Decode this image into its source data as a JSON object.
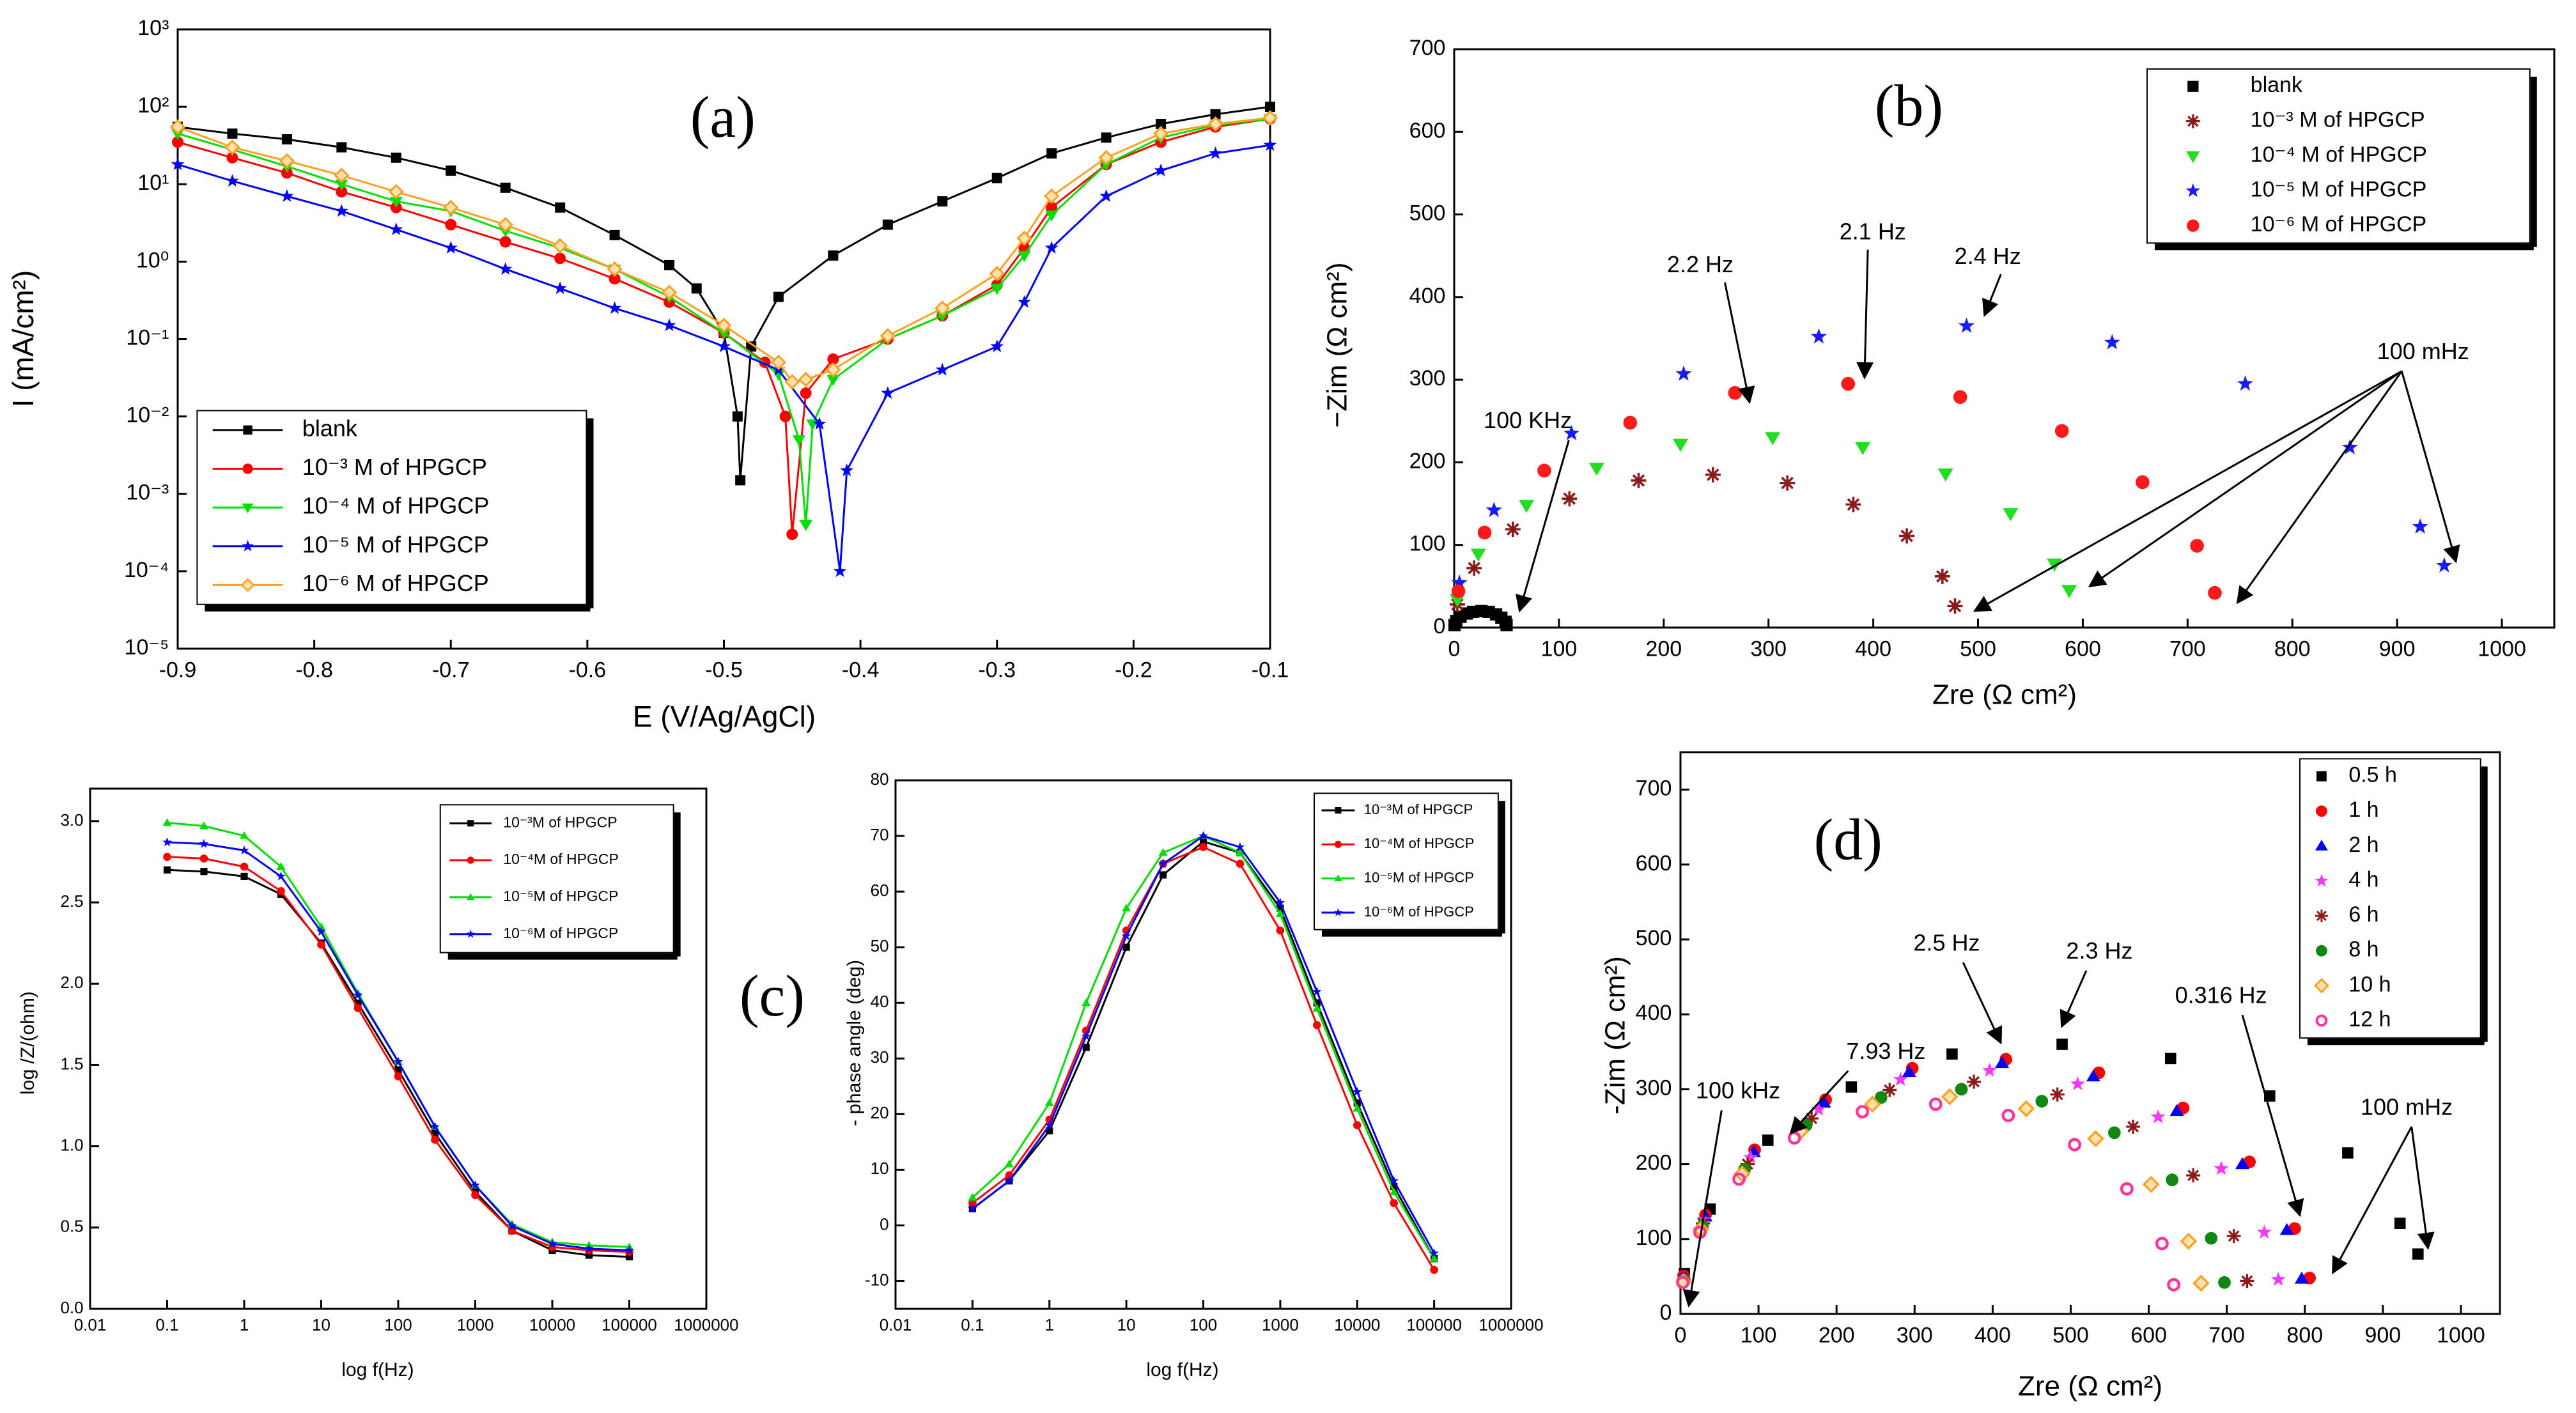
{
  "chart_data": [
    {
      "type": "line",
      "panel_label": "(a)",
      "xlabel": "E (V/Ag/AgCl)",
      "ylabel": "I (mA/cm²)",
      "yscale": "log",
      "legend": "lower left",
      "xlim": [
        -0.9,
        -0.1
      ],
      "xticks": [
        -0.9,
        -0.8,
        -0.7,
        -0.6,
        -0.5,
        -0.4,
        -0.3,
        -0.2,
        -0.1
      ],
      "ylim": [
        1e-05,
        1000
      ],
      "yticks": [
        {
          "value": 1e-05,
          "label": "10⁻⁵"
        },
        {
          "value": 0.0001,
          "label": "10⁻⁴"
        },
        {
          "value": 0.001,
          "label": "10⁻³"
        },
        {
          "value": 0.01,
          "label": "10⁻²"
        },
        {
          "value": 0.1,
          "label": "10⁻¹"
        },
        {
          "value": 1,
          "label": "10⁰"
        },
        {
          "value": 10,
          "label": "10¹"
        },
        {
          "value": 100,
          "label": "10²"
        },
        {
          "value": 1000,
          "label": "10³"
        }
      ],
      "series": [
        {
          "name": "blank",
          "color": "#000000",
          "marker": "square",
          "x": [
            -0.9,
            -0.86,
            -0.82,
            -0.78,
            -0.74,
            -0.7,
            -0.66,
            -0.62,
            -0.58,
            -0.54,
            -0.52,
            -0.5,
            -0.49,
            -0.488,
            -0.48,
            -0.46,
            -0.42,
            -0.38,
            -0.34,
            -0.3,
            -0.26,
            -0.22,
            -0.18,
            -0.14,
            -0.1
          ],
          "values": [
            55,
            45,
            38,
            30,
            22,
            15,
            9,
            5,
            2.2,
            0.9,
            0.45,
            0.12,
            0.01,
            0.0015,
            0.08,
            0.35,
            1.2,
            3,
            6,
            12,
            25,
            40,
            60,
            80,
            100
          ]
        },
        {
          "name": "10⁻³ M of HPGCP",
          "color": "#ff0000",
          "marker": "circle",
          "x": [
            -0.9,
            -0.86,
            -0.82,
            -0.78,
            -0.74,
            -0.7,
            -0.66,
            -0.62,
            -0.58,
            -0.54,
            -0.5,
            -0.47,
            -0.455,
            -0.45,
            -0.44,
            -0.42,
            -0.38,
            -0.34,
            -0.3,
            -0.28,
            -0.26,
            -0.22,
            -0.18,
            -0.14,
            -0.1
          ],
          "values": [
            35,
            22,
            14,
            8,
            5,
            3,
            1.8,
            1.1,
            0.6,
            0.3,
            0.12,
            0.05,
            0.01,
            0.0003,
            0.02,
            0.055,
            0.1,
            0.2,
            0.5,
            1.5,
            5,
            18,
            35,
            55,
            70
          ]
        },
        {
          "name": "10⁻⁴ M of HPGCP",
          "color": "#00e000",
          "marker": "tri-down",
          "x": [
            -0.9,
            -0.86,
            -0.82,
            -0.78,
            -0.74,
            -0.7,
            -0.66,
            -0.62,
            -0.58,
            -0.54,
            -0.5,
            -0.46,
            -0.445,
            -0.44,
            -0.435,
            -0.42,
            -0.38,
            -0.34,
            -0.3,
            -0.28,
            -0.26,
            -0.22,
            -0.18,
            -0.14,
            -0.1
          ],
          "values": [
            45,
            28,
            17,
            10,
            6,
            4.5,
            2.5,
            1.5,
            0.8,
            0.35,
            0.12,
            0.035,
            0.005,
            0.0004,
            0.008,
            0.03,
            0.1,
            0.2,
            0.45,
            1.2,
            4,
            18,
            40,
            58,
            70
          ]
        },
        {
          "name": "10⁻⁵ M of HPGCP",
          "color": "#0000ff",
          "marker": "star",
          "x": [
            -0.9,
            -0.86,
            -0.82,
            -0.78,
            -0.74,
            -0.7,
            -0.66,
            -0.62,
            -0.58,
            -0.54,
            -0.5,
            -0.46,
            -0.43,
            -0.415,
            -0.41,
            -0.38,
            -0.34,
            -0.3,
            -0.28,
            -0.26,
            -0.22,
            -0.18,
            -0.14,
            -0.1
          ],
          "values": [
            18,
            11,
            7,
            4.5,
            2.6,
            1.5,
            0.8,
            0.45,
            0.25,
            0.15,
            0.08,
            0.04,
            0.008,
            0.0001,
            0.002,
            0.02,
            0.04,
            0.08,
            0.3,
            1.5,
            7,
            15,
            25,
            32
          ]
        },
        {
          "name": "10⁻⁶ M of HPGCP",
          "color": "#ffa020",
          "marker": "diamond",
          "x": [
            -0.9,
            -0.86,
            -0.82,
            -0.78,
            -0.74,
            -0.7,
            -0.66,
            -0.62,
            -0.58,
            -0.54,
            -0.5,
            -0.46,
            -0.45,
            -0.44,
            -0.42,
            -0.38,
            -0.34,
            -0.3,
            -0.28,
            -0.26,
            -0.22,
            -0.18,
            -0.14,
            -0.1
          ],
          "values": [
            55,
            30,
            20,
            13,
            8,
            5,
            3,
            1.6,
            0.8,
            0.4,
            0.15,
            0.05,
            0.028,
            0.03,
            0.04,
            0.11,
            0.25,
            0.7,
            2,
            7,
            22,
            45,
            60,
            72
          ]
        }
      ]
    },
    {
      "type": "scatter",
      "panel_label": "(b)",
      "xlabel": "Zre (Ω cm²)",
      "ylabel": "−Zim (Ω cm²)",
      "legend": "upper right",
      "annotations": [
        "100 KHz",
        "2.2 Hz",
        "2.1 Hz",
        "2.4 Hz",
        "100 mHz"
      ],
      "xlim": [
        0,
        1050
      ],
      "xticks": [
        0,
        100,
        200,
        300,
        400,
        500,
        600,
        700,
        800,
        900,
        1000
      ],
      "ylim": [
        0,
        700
      ],
      "yticks": [
        0,
        100,
        200,
        300,
        400,
        500,
        600,
        700
      ],
      "series": [
        {
          "name": "blank",
          "color": "#000000",
          "marker": "square",
          "x": [
            0.3,
            2,
            6,
            12,
            18,
            26,
            33,
            40,
            45,
            49,
            50
          ],
          "values": [
            3,
            8,
            13,
            17,
            19,
            20,
            19,
            16,
            12,
            7,
            3
          ]
        },
        {
          "name": "10⁻³ M of HPGCP",
          "color": "#8b1a1a",
          "marker": "asterisk",
          "x": [
            3,
            19,
            56,
            110,
            176,
            247,
            318,
            381,
            432,
            466,
            478
          ],
          "values": [
            28,
            72,
            119,
            156,
            178,
            185,
            175,
            149,
            111,
            62,
            26
          ]
        },
        {
          "name": "10⁻⁴ M of HPGCP",
          "color": "#22dd22",
          "marker": "tri-down",
          "x": [
            3,
            23,
            69,
            136,
            216,
            304,
            390,
            469,
            531,
            573,
            587
          ],
          "values": [
            34,
            89,
            148,
            193,
            222,
            230,
            218,
            186,
            138,
            77,
            45
          ]
        },
        {
          "name": "10⁻⁵ M of HPGCP",
          "color": "#1a1aff",
          "marker": "star",
          "x": [
            5,
            38,
            112,
            219,
            348,
            489,
            628,
            755,
            855,
            922,
            945
          ],
          "values": [
            54,
            142,
            235,
            307,
            352,
            365,
            345,
            295,
            218,
            122,
            75
          ]
        },
        {
          "name": "10⁻⁶ M of HPGCP",
          "color": "#ff1a1a",
          "marker": "circle",
          "x": [
            4,
            29,
            86,
            168,
            268,
            376,
            483,
            580,
            657,
            709,
            726
          ],
          "values": [
            44,
            115,
            190,
            248,
            284,
            295,
            279,
            238,
            176,
            99,
            42
          ]
        }
      ]
    },
    {
      "type": "line",
      "panel_label": "(c)",
      "xlabel": "log f(Hz)",
      "ylabel": "log /Z/(ohm)",
      "xscale": "log",
      "legend": "upper right",
      "xlim": [
        0.01,
        1000000
      ],
      "xticks": [
        0.01,
        0.1,
        1,
        10,
        100,
        1000,
        10000,
        100000,
        1000000
      ],
      "ylim": [
        0,
        3.2
      ],
      "yticks": [
        {
          "value": 0,
          "label": "0.0"
        },
        0.5,
        {
          "value": 1,
          "label": "1.0"
        },
        1.5,
        {
          "value": 2,
          "label": "2.0"
        },
        2.5,
        {
          "value": 3,
          "label": "3.0"
        }
      ],
      "x": [
        0.1,
        0.3,
        1,
        3,
        10,
        30,
        100,
        300,
        1000,
        3000,
        10000,
        30000,
        100000
      ],
      "series": [
        {
          "name": "10⁻³M of HPGCP",
          "color": "#000000",
          "marker": "square",
          "values": [
            2.7,
            2.69,
            2.66,
            2.55,
            2.25,
            1.88,
            1.47,
            1.08,
            0.72,
            0.48,
            0.36,
            0.33,
            0.32
          ]
        },
        {
          "name": "10⁻⁴M of HPGCP",
          "color": "#ff0000",
          "marker": "circle",
          "values": [
            2.78,
            2.77,
            2.72,
            2.57,
            2.24,
            1.85,
            1.43,
            1.04,
            0.7,
            0.48,
            0.38,
            0.36,
            0.35
          ]
        },
        {
          "name": "10⁻⁵M of HPGCP",
          "color": "#00dd00",
          "marker": "tri-up",
          "values": [
            2.99,
            2.97,
            2.91,
            2.72,
            2.35,
            1.94,
            1.52,
            1.12,
            0.76,
            0.52,
            0.41,
            0.39,
            0.38
          ]
        },
        {
          "name": "10⁻⁶M of HPGCP",
          "color": "#0000ff",
          "marker": "star",
          "values": [
            2.87,
            2.86,
            2.82,
            2.66,
            2.32,
            1.93,
            1.52,
            1.12,
            0.76,
            0.51,
            0.4,
            0.37,
            0.36
          ]
        }
      ]
    },
    {
      "type": "line",
      "xlabel": "log f(Hz)",
      "ylabel": "- phase angle (deg)",
      "xscale": "log",
      "legend": "upper right",
      "xlim": [
        0.01,
        1000000
      ],
      "xticks": [
        0.01,
        0.1,
        1,
        10,
        100,
        1000,
        10000,
        100000,
        1000000
      ],
      "ylim": [
        -15,
        80
      ],
      "yticks": [
        -10,
        0,
        10,
        20,
        30,
        40,
        50,
        60,
        70,
        80
      ],
      "x": [
        0.1,
        0.3,
        1,
        3,
        10,
        30,
        100,
        300,
        1000,
        3000,
        10000,
        30000,
        100000
      ],
      "series": [
        {
          "name": "10⁻³M of HPGCP",
          "color": "#000000",
          "marker": "square",
          "values": [
            3,
            8,
            17,
            32,
            50,
            63,
            69,
            67,
            57,
            40,
            22,
            7,
            -6
          ]
        },
        {
          "name": "10⁻⁴M of HPGCP",
          "color": "#ff0000",
          "marker": "circle",
          "values": [
            4,
            9,
            19,
            35,
            53,
            65,
            68,
            65,
            53,
            36,
            18,
            4,
            -8
          ]
        },
        {
          "name": "10⁻⁵M of HPGCP",
          "color": "#00dd00",
          "marker": "tri-up",
          "values": [
            5,
            11,
            22,
            40,
            57,
            67,
            70,
            67,
            56,
            39,
            21,
            6,
            -6
          ]
        },
        {
          "name": "10⁻⁶M of HPGCP",
          "color": "#0000ff",
          "marker": "star",
          "values": [
            3,
            8,
            18,
            34,
            52,
            65,
            70,
            68,
            58,
            42,
            24,
            8,
            -5
          ]
        }
      ]
    },
    {
      "type": "scatter",
      "panel_label": "(d)",
      "xlabel": "Zre (Ω cm²)",
      "ylabel": "-Zim (Ω cm²)",
      "legend": "upper right",
      "annotations": [
        "100 kHz",
        "7.93 Hz",
        "2.5 Hz",
        "2.3 Hz",
        "0.316 Hz",
        "100 mHz"
      ],
      "xlim": [
        0,
        1050
      ],
      "xticks": [
        0,
        100,
        200,
        300,
        400,
        500,
        600,
        700,
        800,
        900,
        1000
      ],
      "ylim": [
        0,
        750
      ],
      "yticks": [
        0,
        100,
        200,
        300,
        400,
        500,
        600,
        700
      ],
      "series": [
        {
          "name": "0.5 h",
          "color": "#000000",
          "marker": "square",
          "x": [
            5,
            38,
            112,
            219,
            348,
            489,
            628,
            755,
            855,
            922,
            945
          ],
          "values": [
            54,
            140,
            232,
            303,
            347,
            360,
            341,
            291,
            215,
            121,
            80
          ]
        },
        {
          "name": "1 h",
          "color": "#ff0000",
          "marker": "circle",
          "x": [
            4,
            32,
            95,
            186,
            297,
            417,
            536,
            644,
            729,
            787,
            806
          ],
          "values": [
            51,
            132,
            219,
            286,
            328,
            340,
            322,
            275,
            203,
            114,
            48
          ]
        },
        {
          "name": "2 h",
          "color": "#0000ff",
          "marker": "tri-up",
          "x": [
            4,
            32,
            94,
            184,
            293,
            412,
            529,
            636,
            720,
            777,
            796
          ],
          "values": [
            50,
            130,
            216,
            282,
            323,
            335,
            317,
            271,
            200,
            112,
            47
          ]
        },
        {
          "name": "4 h",
          "color": "#ff33ff",
          "marker": "star",
          "x": [
            4,
            30,
            90,
            177,
            282,
            396,
            509,
            612,
            693,
            748,
            766
          ],
          "values": [
            48,
            126,
            209,
            273,
            313,
            325,
            307,
            263,
            194,
            109,
            46
          ]
        },
        {
          "name": "6 h",
          "color": "#8b1a1a",
          "marker": "asterisk",
          "x": [
            4,
            29,
            86,
            168,
            268,
            376,
            483,
            580,
            657,
            709,
            726
          ],
          "values": [
            46,
            121,
            200,
            261,
            299,
            310,
            293,
            250,
            185,
            104,
            44
          ]
        },
        {
          "name": "8 h",
          "color": "#118811",
          "marker": "circle",
          "x": [
            4,
            28,
            82,
            161,
            257,
            360,
            463,
            556,
            630,
            680,
            697
          ],
          "values": [
            45,
            117,
            193,
            252,
            289,
            300,
            284,
            242,
            179,
            101,
            42
          ]
        },
        {
          "name": "10 h",
          "color": "#ffa020",
          "marker": "diamond",
          "x": [
            4,
            26,
            79,
            154,
            246,
            345,
            443,
            532,
            603,
            651,
            667
          ],
          "values": [
            43,
            113,
            187,
            244,
            280,
            290,
            274,
            234,
            173,
            97,
            41
          ]
        },
        {
          "name": "12 h",
          "color": "#ff3399",
          "marker": "ring",
          "x": [
            3,
            25,
            75,
            146,
            233,
            327,
            420,
            505,
            572,
            617,
            632
          ],
          "values": [
            42,
            109,
            180,
            235,
            270,
            280,
            265,
            226,
            167,
            94,
            39
          ]
        }
      ]
    }
  ]
}
